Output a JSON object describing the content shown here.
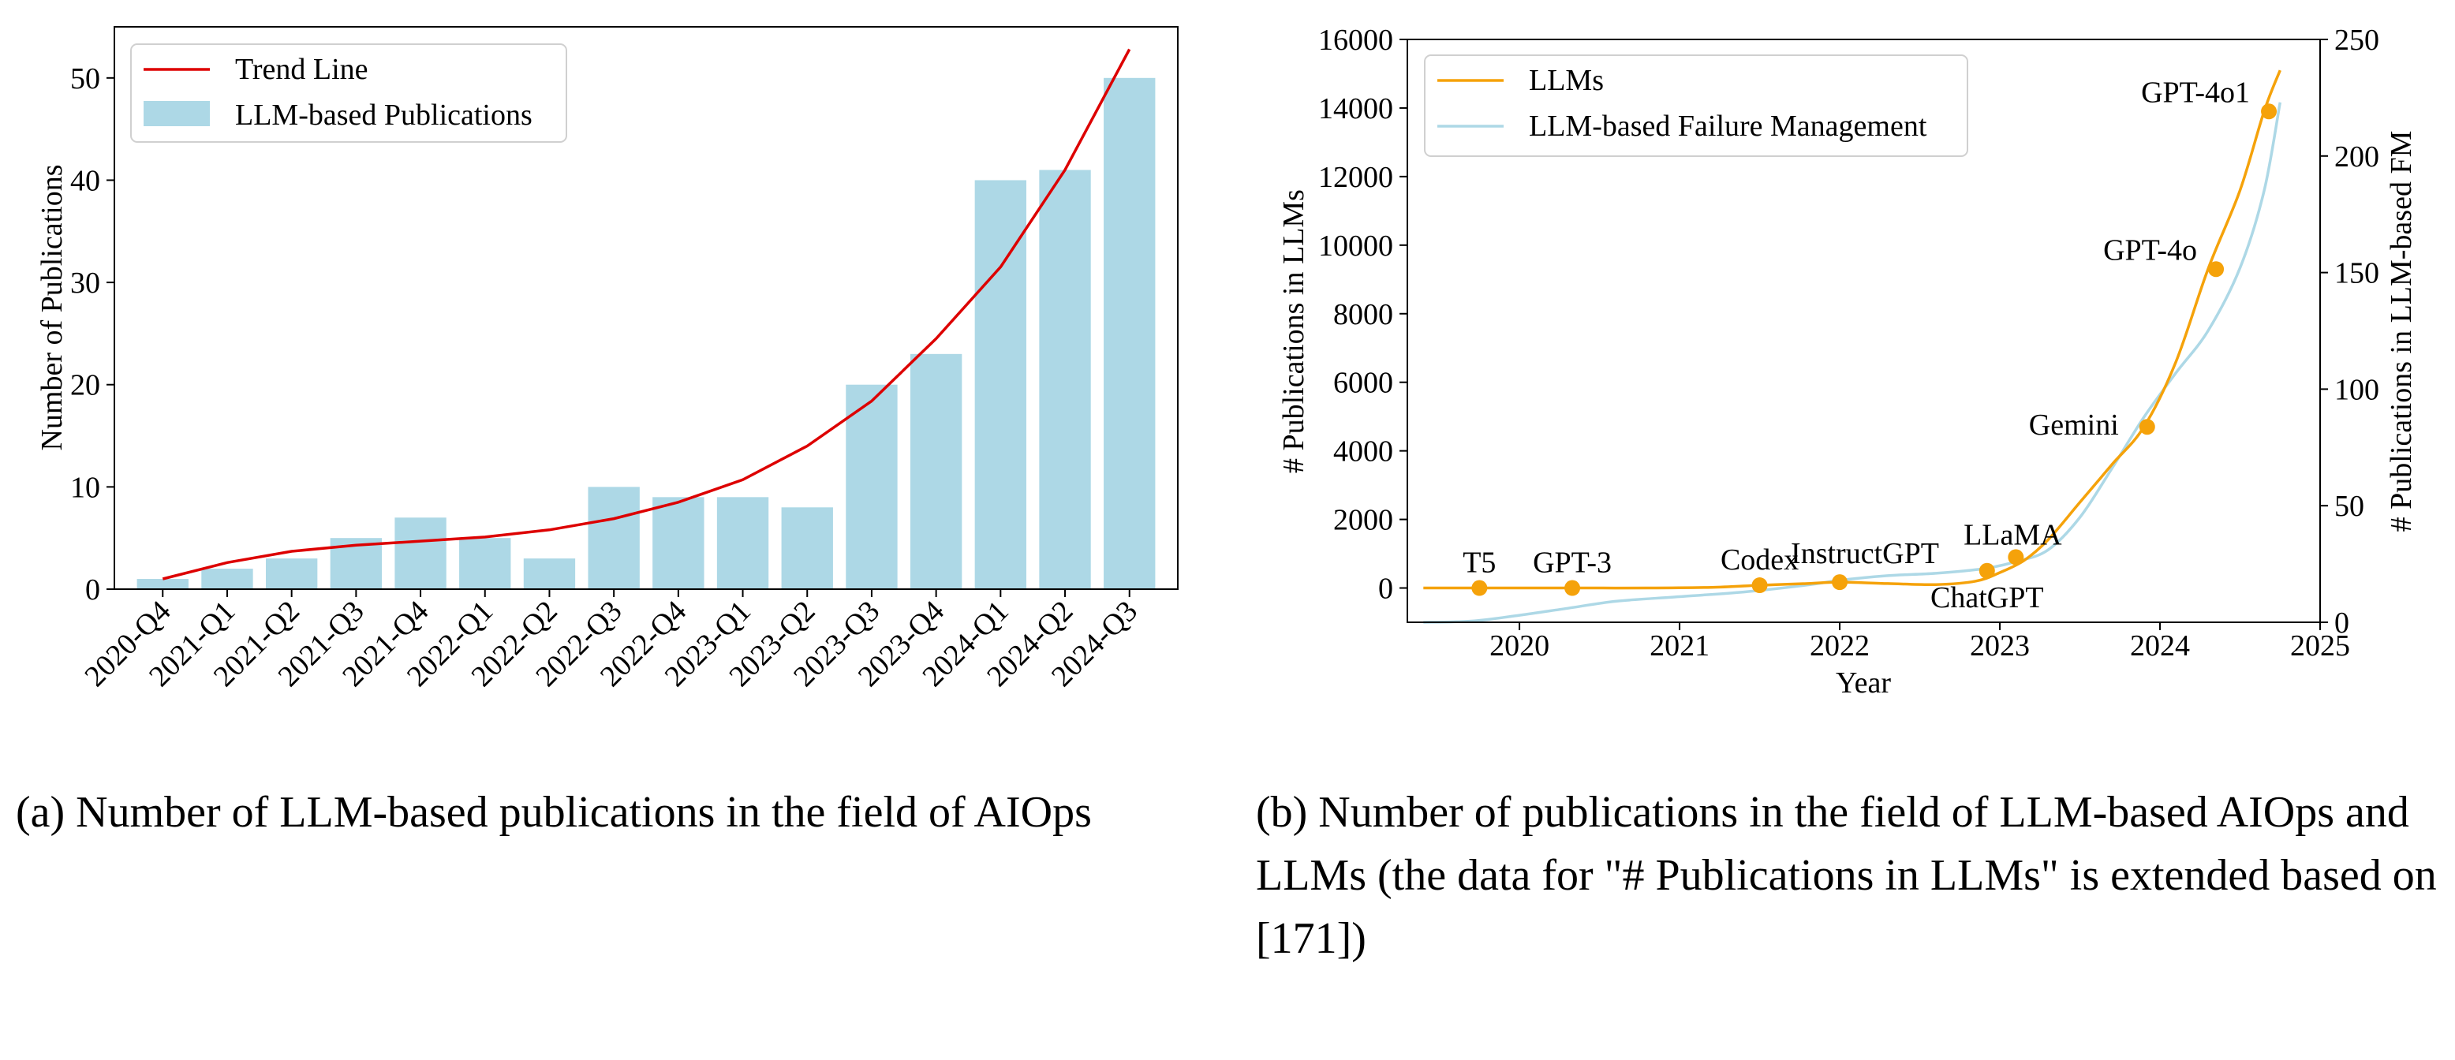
{
  "chart_data": [
    {
      "type": "bar",
      "caption": "(a)  Number of LLM-based publications in the field of AIOps",
      "ylabel": "Number of Publications",
      "ylim": [
        0,
        55
      ],
      "yticks": [
        0,
        10,
        20,
        30,
        40,
        50
      ],
      "categories": [
        "2020-Q4",
        "2021-Q1",
        "2021-Q2",
        "2021-Q3",
        "2021-Q4",
        "2022-Q1",
        "2022-Q2",
        "2022-Q3",
        "2022-Q4",
        "2023-Q1",
        "2023-Q2",
        "2023-Q3",
        "2023-Q4",
        "2024-Q1",
        "2024-Q2",
        "2024-Q3"
      ],
      "series": [
        {
          "name": "LLM-based Publications",
          "type": "bar",
          "values": [
            1,
            2,
            3,
            5,
            7,
            5,
            3,
            10,
            9,
            9,
            8,
            20,
            23,
            40,
            41,
            50
          ]
        },
        {
          "name": "Trend Line",
          "type": "line",
          "values": [
            1.0,
            2.6,
            3.7,
            4.3,
            4.7,
            5.1,
            5.8,
            6.9,
            8.5,
            10.7,
            14.0,
            18.4,
            24.5,
            31.5,
            41.0,
            52.8
          ]
        }
      ],
      "colors": {
        "bar": "#add8e6",
        "trend": "#dd0000"
      },
      "legend": "top-left"
    },
    {
      "type": "line",
      "caption": "(b)  Number of publications in the field of LLM-based AIOps and LLMs (the data for \"# Publications in LLMs\" is extended based on [171])",
      "xlabel": "Year",
      "ylabel": "# Publications in LLMs",
      "ylabel_right": "# Publications in LLM-based FM",
      "xlim": [
        2019.3,
        2025.0
      ],
      "xticks": [
        2020,
        2021,
        2022,
        2023,
        2024,
        2025
      ],
      "ylim": [
        -1000,
        16000
      ],
      "yticks": [
        0,
        2000,
        4000,
        6000,
        8000,
        10000,
        12000,
        14000,
        16000
      ],
      "ylim_right": [
        0,
        250
      ],
      "yticks_right": [
        0,
        50,
        100,
        150,
        200,
        250
      ],
      "series": [
        {
          "name": "LLMs",
          "axis": "left",
          "x": [
            2019.4,
            2019.75,
            2020.0,
            2020.35,
            2020.8,
            2021.2,
            2021.5,
            2021.8,
            2022.0,
            2022.3,
            2022.6,
            2022.85,
            2023.0,
            2023.15,
            2023.3,
            2023.5,
            2023.7,
            2023.9,
            2024.1,
            2024.3,
            2024.5,
            2024.65,
            2024.75
          ],
          "y": [
            0,
            0,
            0,
            0,
            0,
            20,
            80,
            130,
            170,
            130,
            100,
            200,
            450,
            800,
            1400,
            2500,
            3600,
            4700,
            6600,
            9300,
            11600,
            13900,
            15100
          ]
        },
        {
          "name": "LLM-based Failure Management",
          "axis": "right",
          "x": [
            2019.4,
            2019.7,
            2020.0,
            2020.3,
            2020.6,
            2021.0,
            2021.4,
            2021.8,
            2022.0,
            2022.3,
            2022.6,
            2022.9,
            2023.1,
            2023.3,
            2023.5,
            2023.7,
            2023.9,
            2024.1,
            2024.3,
            2024.5,
            2024.65,
            2024.75
          ],
          "y": [
            0,
            0.5,
            3,
            6,
            9,
            11,
            13,
            16,
            18,
            20,
            21,
            23,
            26,
            31,
            45,
            66,
            88,
            107,
            125,
            152,
            185,
            223
          ]
        }
      ],
      "milestones": [
        {
          "label": "T5",
          "x": 2019.75,
          "y": 0
        },
        {
          "label": "GPT-3",
          "x": 2020.33,
          "y": 0
        },
        {
          "label": "Codex",
          "x": 2021.5,
          "y": 80
        },
        {
          "label": "InstructGPT",
          "x": 2022.0,
          "y": 170
        },
        {
          "label": "ChatGPT",
          "x": 2022.92,
          "y": 500
        },
        {
          "label": "LLaMA",
          "x": 2023.1,
          "y": 900
        },
        {
          "label": "Gemini",
          "x": 2023.92,
          "y": 4700
        },
        {
          "label": "GPT-4o",
          "x": 2024.35,
          "y": 9300
        },
        {
          "label": "GPT-4o1",
          "x": 2024.68,
          "y": 13900
        }
      ],
      "colors": {
        "llms": "#f5a20a",
        "fm": "#add8e6"
      },
      "legend": "top-left"
    }
  ]
}
